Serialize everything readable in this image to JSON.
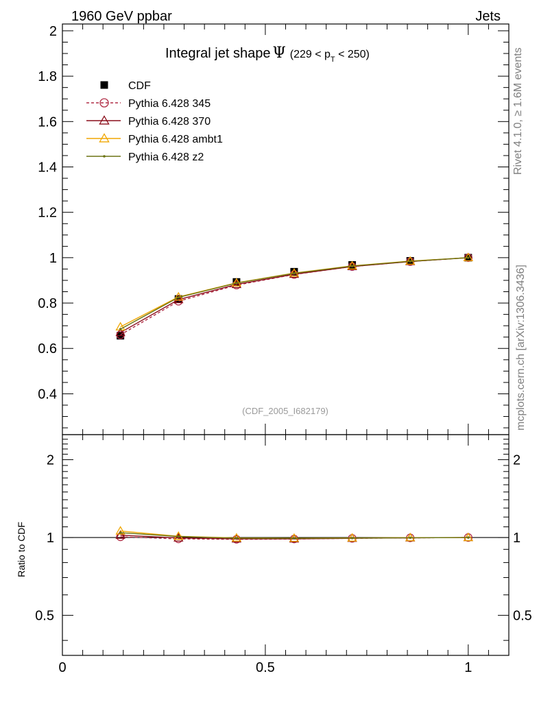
{
  "header": {
    "left_title": "1960 GeV ppbar",
    "right_title": "Jets"
  },
  "side_labels": {
    "rivet": "Rivet 4.1.0, ≥ 1.6M events",
    "mcplots": "mcplots.cern.ch [arXiv:1306.3436]"
  },
  "main_plot": {
    "title_prefix": "Integral jet shape",
    "title_symbol": "Ψ",
    "title_range_open": "(229 < p",
    "title_range_sub": "T",
    "title_range_close": " < 250)",
    "watermark": "(CDF_2005_I682179)"
  },
  "ratio_plot": {
    "ylabel": "Ratio to CDF"
  },
  "chart_data": [
    {
      "type": "line",
      "panel": "main",
      "title": "Integral jet shape Ψ (229 < pT < 250)",
      "xlim": [
        0,
        1.1
      ],
      "ylim": [
        0.22,
        2.03
      ],
      "y_ticks": [
        0.4,
        0.6,
        0.8,
        1,
        1.2,
        1.4,
        1.6,
        1.8,
        2
      ],
      "y_tick_labels": [
        "0.4",
        "0.6",
        "0.8",
        "1",
        "1.2",
        "1.4",
        "1.6",
        "1.8",
        "2"
      ],
      "x": [
        0.143,
        0.286,
        0.429,
        0.571,
        0.714,
        0.857,
        1.0
      ],
      "series": [
        {
          "name": "CDF",
          "style": "data",
          "color": "#000000",
          "values": [
            0.656,
            0.818,
            0.893,
            0.938,
            0.968,
            0.986,
            1.0
          ]
        },
        {
          "name": "Pythia 6.428 345",
          "style": "dashed-circle",
          "color": "#b02c45",
          "values": [
            0.66,
            0.808,
            0.879,
            0.926,
            0.961,
            0.983,
            1.0
          ]
        },
        {
          "name": "Pythia 6.428 370",
          "style": "solid-triangle",
          "color": "#8a0d1a",
          "values": [
            0.67,
            0.815,
            0.882,
            0.927,
            0.961,
            0.983,
            1.0
          ]
        },
        {
          "name": "Pythia 6.428 ambt1",
          "style": "solid-triangle",
          "color": "#f0a600",
          "values": [
            0.695,
            0.827,
            0.889,
            0.932,
            0.964,
            0.985,
            1.0
          ]
        },
        {
          "name": "Pythia 6.428 z2",
          "style": "solid-dot",
          "color": "#6b7413",
          "values": [
            0.685,
            0.825,
            0.888,
            0.931,
            0.963,
            0.984,
            1.0
          ]
        }
      ]
    },
    {
      "type": "line",
      "panel": "ratio",
      "ylabel": "Ratio to CDF",
      "y_scale": "log",
      "xlim": [
        0,
        1.1
      ],
      "ylim": [
        0.35,
        2.5
      ],
      "x_ticks": [
        0,
        0.5,
        1
      ],
      "x_tick_labels": [
        "0",
        "0.5",
        "1"
      ],
      "y_ticks": [
        0.5,
        1,
        2
      ],
      "y_tick_labels": [
        "0.5",
        "1",
        "2"
      ],
      "x": [
        0.143,
        0.286,
        0.429,
        0.571,
        0.714,
        0.857,
        1.0
      ],
      "series": [
        {
          "name": "Pythia 6.428 345",
          "style": "dashed-circle",
          "color": "#b02c45",
          "values": [
            1.006,
            0.988,
            0.984,
            0.987,
            0.993,
            0.997,
            1.0
          ]
        },
        {
          "name": "Pythia 6.428 370",
          "style": "solid-triangle",
          "color": "#8a0d1a",
          "values": [
            1.021,
            0.996,
            0.988,
            0.988,
            0.993,
            0.997,
            1.0
          ]
        },
        {
          "name": "Pythia 6.428 ambt1",
          "style": "solid-triangle",
          "color": "#f0a600",
          "values": [
            1.06,
            1.011,
            0.996,
            0.994,
            0.996,
            0.999,
            1.0
          ]
        },
        {
          "name": "Pythia 6.428 z2",
          "style": "solid-dot",
          "color": "#6b7413",
          "values": [
            1.044,
            1.009,
            0.994,
            0.993,
            0.995,
            0.998,
            1.0
          ]
        }
      ]
    }
  ]
}
